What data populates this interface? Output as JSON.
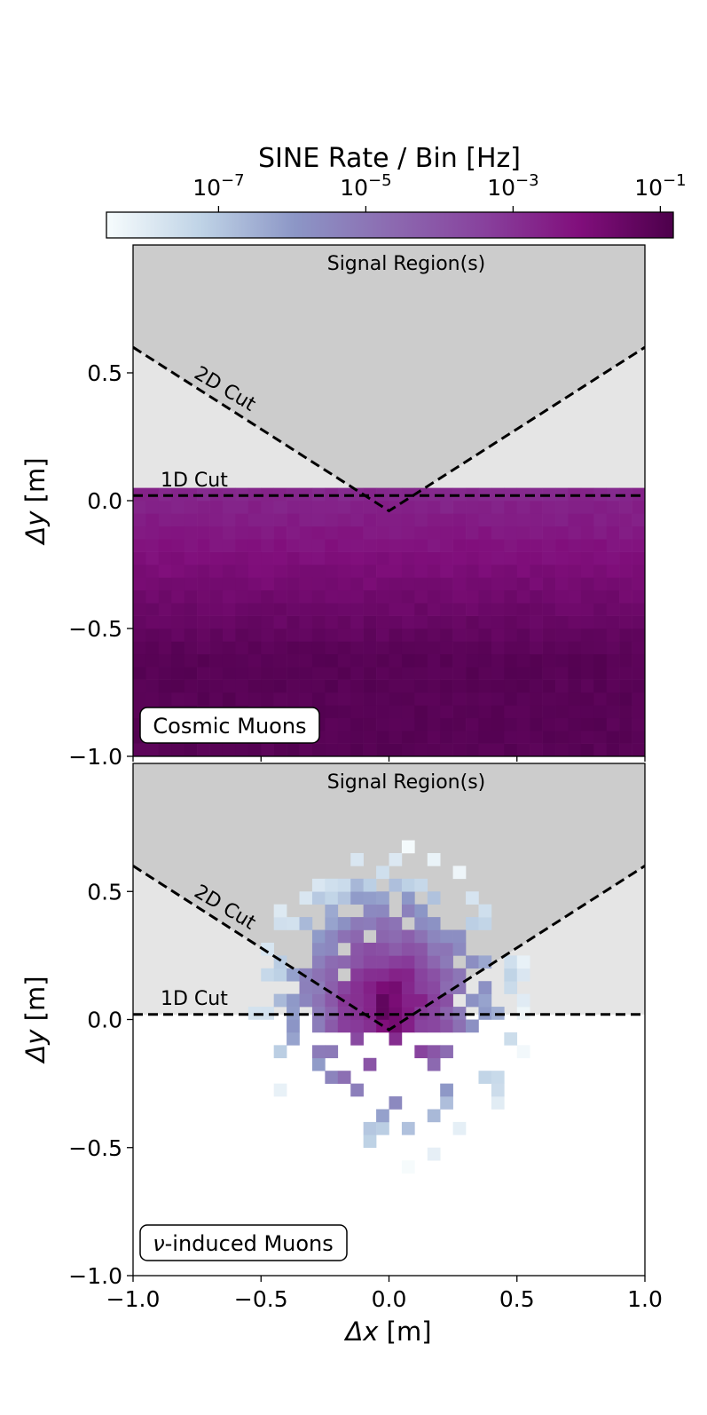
{
  "chart_data": {
    "type": "heatmap",
    "colorbar": {
      "title": "SINE Rate / Bin [Hz]",
      "scale": "log",
      "range": [
        3e-09,
        0.15
      ],
      "ticks": [
        {
          "base": "10",
          "exp": "−7",
          "value": 1e-07
        },
        {
          "base": "10",
          "exp": "−5",
          "value": 1e-05
        },
        {
          "base": "10",
          "exp": "−3",
          "value": 0.001
        },
        {
          "base": "10",
          "exp": "−1",
          "value": 0.1
        }
      ],
      "colormap": [
        "#f7fcfd",
        "#bfd3e6",
        "#8c96c6",
        "#8c6bb1",
        "#88419d",
        "#810f7c",
        "#4d004b"
      ]
    },
    "shared_x": {
      "label_symbol": "Δx",
      "label_unit": " [m]",
      "range": [
        -1.0,
        1.0
      ],
      "ticks": [
        "−1.0",
        "−0.5",
        "0.0",
        "0.5",
        "1.0"
      ]
    },
    "grid": false,
    "panels": [
      {
        "title": "Cosmic Muons",
        "ylabel_symbol": "Δy",
        "ylabel_unit": " [m]",
        "yrange": [
          -1.0,
          1.0
        ],
        "yticks": [
          "−1.0",
          "−0.5",
          "0.0",
          "0.5"
        ],
        "signal_region_label": "Signal Region(s)",
        "cut_1d_label": "1D Cut",
        "cut_2d_label": "2D Cut",
        "cut_1d_y": 0.02,
        "cut_2d_vertex": [
          0.0,
          -0.04
        ],
        "cut_2d_ends": [
          [
            -1.0,
            0.6
          ],
          [
            1.0,
            0.6
          ]
        ],
        "bin_size": 0.05,
        "distribution": "cosmic",
        "rate_near_cut": 0.002,
        "rate_far": 0.08
      },
      {
        "title": "-induced Muons",
        "title_prefix": "ν",
        "ylabel_symbol": "Δy",
        "ylabel_unit": " [m]",
        "yrange": [
          -1.0,
          1.0
        ],
        "yticks": [
          "−1.0",
          "−0.5",
          "0.0",
          "0.5"
        ],
        "signal_region_label": "Signal Region(s)",
        "cut_1d_label": "1D Cut",
        "cut_2d_label": "2D Cut",
        "cut_1d_y": 0.02,
        "cut_2d_vertex": [
          0.0,
          -0.04
        ],
        "cut_2d_ends": [
          [
            -1.0,
            0.6
          ],
          [
            1.0,
            0.6
          ]
        ],
        "bin_size": 0.05,
        "distribution": "neutrino",
        "peak": [
          0.0,
          0.05
        ],
        "peak_rate": 0.06
      }
    ],
    "colors": {
      "signal_region": "#cccccc",
      "cut_region": "#e5e5e5",
      "cut_line": "#000000"
    }
  }
}
